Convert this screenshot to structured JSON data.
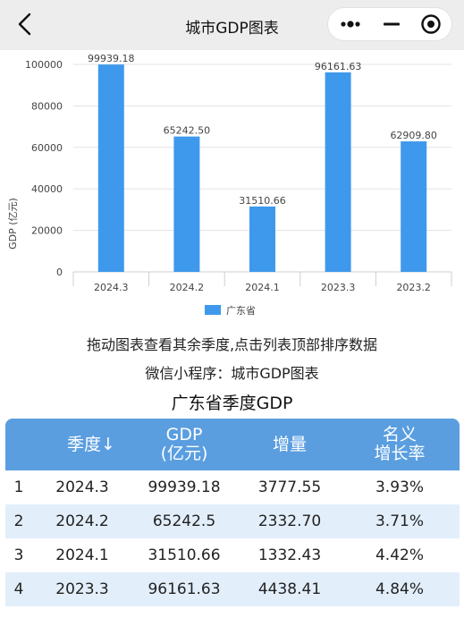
{
  "nav": {
    "title": "城市GDP图表"
  },
  "chart_data": {
    "type": "bar",
    "categories": [
      "2024.3",
      "2024.2",
      "2024.1",
      "2023.3",
      "2023.2"
    ],
    "series": [
      {
        "name": "广东省",
        "values": [
          99939.18,
          65242.5,
          31510.66,
          96161.63,
          62909.8
        ]
      }
    ],
    "data_labels": [
      "99939.18",
      "65242.50",
      "31510.66",
      "96161.63",
      "62909.80"
    ],
    "ylabel": "GDP (亿元)",
    "ylim": [
      0,
      100000
    ],
    "yticks": [
      "0",
      "20000",
      "40000",
      "60000",
      "80000",
      "100000"
    ],
    "grid": true,
    "legend_position": "bottom",
    "bar_color": "#3e99ec"
  },
  "captions": {
    "hint": "拖动图表查看其余季度,点击列表顶部排序数据",
    "miniprogram": "微信小程序：城市GDP图表",
    "section_title": "广东省季度GDP"
  },
  "table": {
    "headers": {
      "quarter": "季度↓",
      "gdp_line1": "GDP",
      "gdp_line2": "(亿元)",
      "increase": "增量",
      "rate_line1": "名义",
      "rate_line2": "增长率"
    },
    "rows": [
      {
        "idx": "1",
        "quarter": "2024.3",
        "gdp": "99939.18",
        "increase": "3777.55",
        "rate": "3.93%"
      },
      {
        "idx": "2",
        "quarter": "2024.2",
        "gdp": "65242.5",
        "increase": "2332.70",
        "rate": "3.71%"
      },
      {
        "idx": "3",
        "quarter": "2024.1",
        "gdp": "31510.66",
        "increase": "1332.43",
        "rate": "4.42%"
      },
      {
        "idx": "4",
        "quarter": "2023.3",
        "gdp": "96161.63",
        "increase": "4438.41",
        "rate": "4.84%"
      }
    ]
  }
}
